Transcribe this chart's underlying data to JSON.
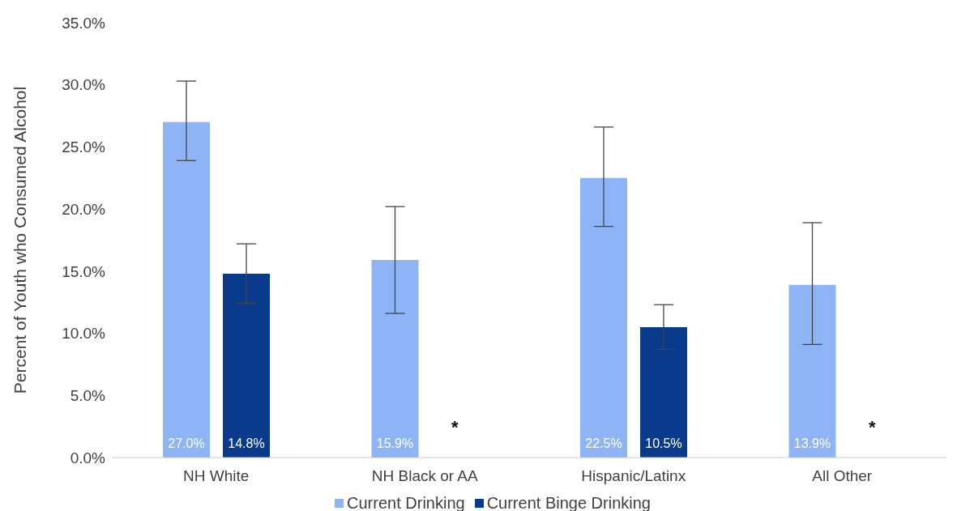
{
  "chart_data": {
    "type": "bar",
    "ylabel": "Percent of Youth who Consumed Alcohol",
    "categories": [
      "NH White",
      "NH Black or AA",
      "Hispanic/Latinx",
      "All Other"
    ],
    "series": [
      {
        "name": "Current Drinking",
        "color": "#8fb4f5",
        "values": [
          27.0,
          15.9,
          22.5,
          13.9
        ],
        "value_labels": [
          "27.0%",
          "15.9%",
          "22.5%",
          "13.9%"
        ],
        "errors": [
          [
            23.9,
            30.3
          ],
          [
            11.6,
            20.2
          ],
          [
            18.6,
            26.6
          ],
          [
            9.1,
            18.9
          ]
        ]
      },
      {
        "name": "Current Binge Drinking",
        "color": "#0a3a8c",
        "values": [
          14.8,
          null,
          10.5,
          null
        ],
        "value_labels": [
          "14.8%",
          null,
          "10.5%",
          null
        ],
        "errors": [
          [
            12.4,
            17.2
          ],
          null,
          [
            8.7,
            12.3
          ],
          null
        ]
      }
    ],
    "ylim": [
      0,
      35
    ],
    "yticks": [
      {
        "value": 0,
        "label": "0.0%"
      },
      {
        "value": 5,
        "label": "5.0%"
      },
      {
        "value": 10,
        "label": "10.0%"
      },
      {
        "value": 15,
        "label": "15.0%"
      },
      {
        "value": 20,
        "label": "20.0%"
      },
      {
        "value": 25,
        "label": "25.0%"
      },
      {
        "value": 30,
        "label": "30.0%"
      },
      {
        "value": 35,
        "label": "35.0%"
      }
    ],
    "annotations": [
      "*",
      "*"
    ],
    "grid": false,
    "legend": "bottom"
  }
}
